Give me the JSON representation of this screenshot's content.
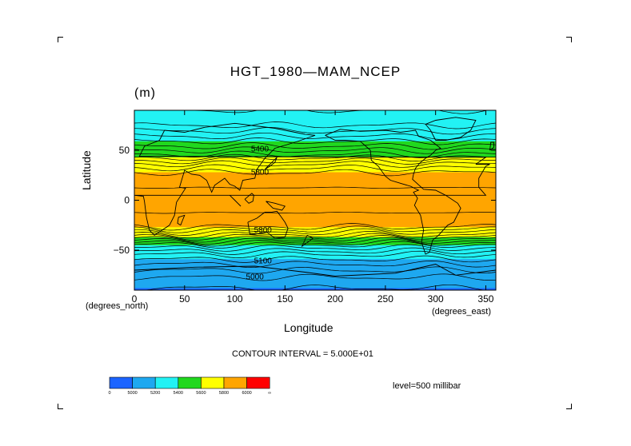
{
  "chart_data": {
    "type": "heatmap",
    "title": "HGT_1980—MAM_NCEP",
    "units": "(m)",
    "xlabel": "Longitude",
    "ylabel": "Latitude",
    "x_unit_label": "(degrees_east)",
    "y_unit_label": "(degrees_north)",
    "xlim": [
      0,
      360
    ],
    "ylim": [
      -90,
      90
    ],
    "x_ticks": [
      0,
      50,
      100,
      150,
      200,
      250,
      300,
      350
    ],
    "y_ticks": [
      -50,
      0,
      50
    ],
    "x_tick_labels": [
      "0",
      "50",
      "100",
      "150",
      "200",
      "250",
      "300",
      "350"
    ],
    "y_tick_labels": [
      "−50",
      "0",
      "50"
    ],
    "contour_interval_text": "CONTOUR INTERVAL = 5.000E+01",
    "level_text": "level=500 millibar",
    "latitude_profile": {
      "lat": [
        -90,
        -75,
        -65,
        -55,
        -45,
        -35,
        -25,
        0,
        25,
        35,
        45,
        55,
        65,
        75,
        90
      ],
      "value": [
        4990,
        5060,
        5140,
        5240,
        5390,
        5640,
        5830,
        5870,
        5830,
        5720,
        5560,
        5440,
        5340,
        5250,
        5200
      ]
    },
    "contour_labels": [
      {
        "text": "5400",
        "lon": 125,
        "lat": 52
      },
      {
        "text": "5800",
        "lon": 125,
        "lat": 29
      },
      {
        "text": "5800",
        "lon": 128,
        "lat": -29
      },
      {
        "text": "5100",
        "lon": 128,
        "lat": -60
      },
      {
        "text": "5000",
        "lon": 120,
        "lat": -76
      }
    ],
    "colorbar": {
      "colors": [
        "#1c64ff",
        "#1ea8f0",
        "#22f2f4",
        "#21d81e",
        "#ffff00",
        "#ffa500",
        "#ff0000"
      ],
      "labels": [
        "0",
        "5000",
        "5200",
        "5400",
        "5600",
        "5800",
        "6000",
        "∞"
      ]
    }
  }
}
